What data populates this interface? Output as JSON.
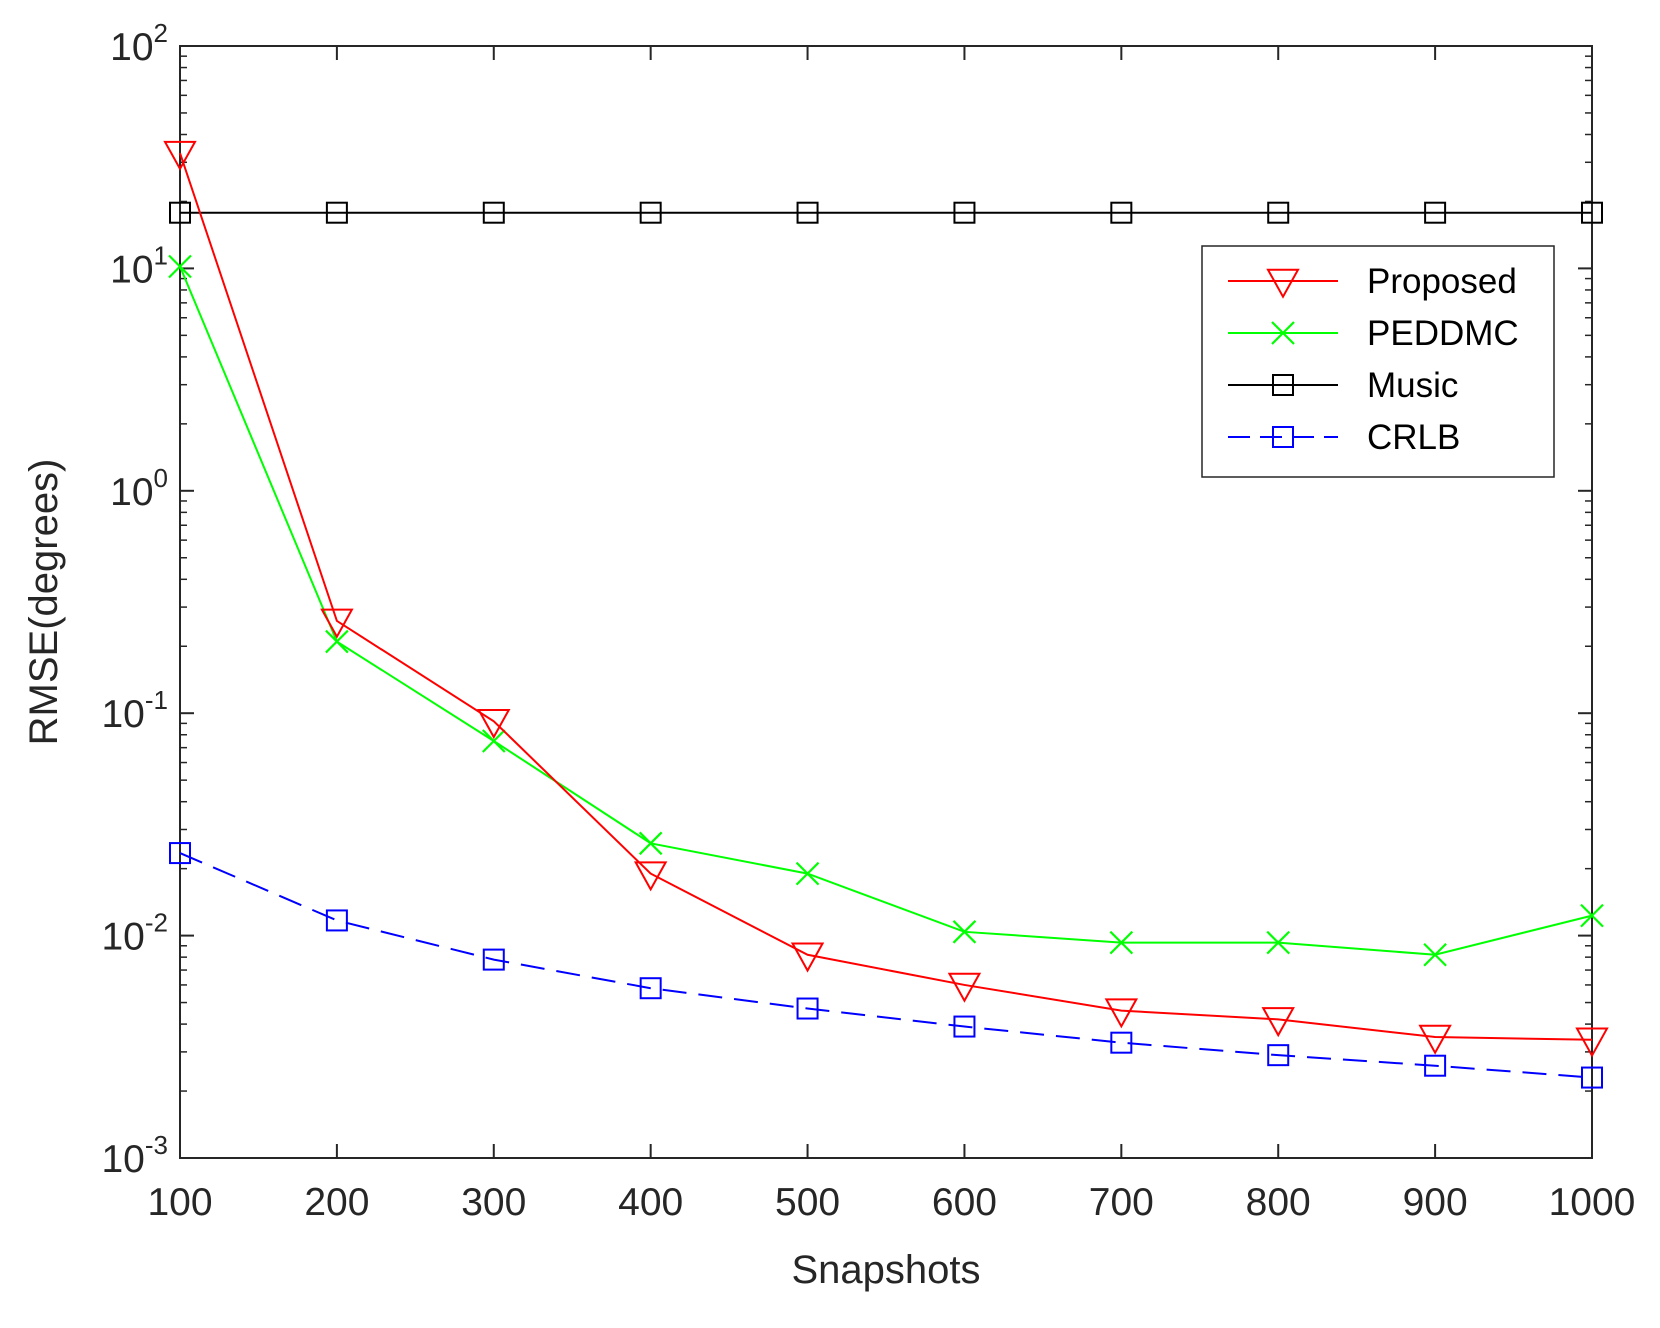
{
  "chart_data": {
    "type": "line",
    "title": "",
    "xlabel": "Snapshots",
    "ylabel": "RMSE(degrees)",
    "yscale": "log",
    "x": [
      100,
      200,
      300,
      400,
      500,
      600,
      700,
      800,
      900,
      1000
    ],
    "xlim": [
      100,
      1000
    ],
    "ylim": [
      0.001,
      100
    ],
    "x_ticks": [
      100,
      200,
      300,
      400,
      500,
      600,
      700,
      800,
      900,
      1000
    ],
    "x_tick_labels": [
      "100",
      "200",
      "300",
      "400",
      "500",
      "600",
      "700",
      "800",
      "900",
      "1000"
    ],
    "y_ticks": [
      {
        "value": 100,
        "base": "10",
        "exp": "2"
      },
      {
        "value": 10,
        "base": "10",
        "exp": "1"
      },
      {
        "value": 1,
        "base": "10",
        "exp": "0"
      },
      {
        "value": 0.1,
        "base": "10",
        "exp": "-1"
      },
      {
        "value": 0.01,
        "base": "10",
        "exp": "-2"
      },
      {
        "value": 0.001,
        "base": "10",
        "exp": "-3"
      }
    ],
    "grid": false,
    "legend_position": "top-right",
    "series": [
      {
        "name": "Proposed",
        "color": "#ff0000",
        "marker": "triangle-down",
        "dash": "solid",
        "values": [
          33,
          0.26,
          0.092,
          0.019,
          0.0082,
          0.006,
          0.0046,
          0.0042,
          0.0035,
          0.0034
        ]
      },
      {
        "name": "PEDDMC",
        "color": "#00ff00",
        "marker": "x",
        "dash": "solid",
        "values": [
          10.2,
          0.21,
          0.075,
          0.026,
          0.019,
          0.0104,
          0.0093,
          0.0093,
          0.0082,
          0.0123
        ]
      },
      {
        "name": "Music",
        "color": "#000000",
        "marker": "square",
        "dash": "solid",
        "values": [
          17.8,
          17.8,
          17.8,
          17.8,
          17.8,
          17.8,
          17.8,
          17.8,
          17.8,
          17.8
        ]
      },
      {
        "name": "CRLB",
        "color": "#0000ff",
        "marker": "square",
        "dash": "dashed",
        "values": [
          0.0235,
          0.0117,
          0.0078,
          0.0058,
          0.0047,
          0.0039,
          0.0033,
          0.0029,
          0.0026,
          0.0023
        ]
      }
    ]
  }
}
